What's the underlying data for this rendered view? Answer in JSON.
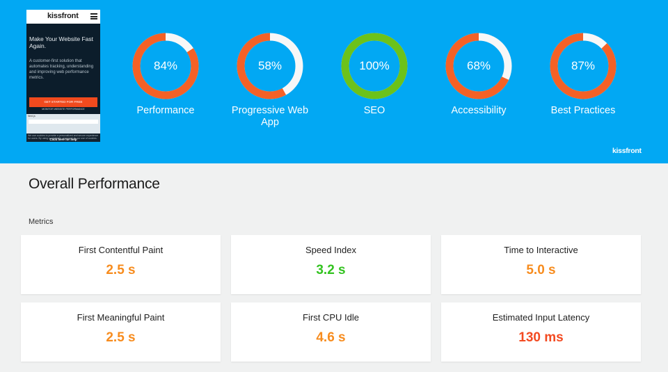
{
  "preview": {
    "logo": "kissfront",
    "menu_icon": "hamburger-icon",
    "headline": "Make Your Website Fast Again.",
    "subtext": "A customer-first solution that automates tracking, understanding and improving web performance metrics.",
    "cta": "GET STARTED FOR FREE",
    "link": "MONITOR WEBSITE PERFORMANCE",
    "bar_label": "Next.js",
    "cookie_text": "We use cookies to provide a personalized and secure experience for users. By using our website, you agree to our use of cookies.",
    "help": "Click here for help"
  },
  "colors": {
    "hero_bg": "#02a8f3",
    "orange": "#f46126",
    "green": "#6cc21a",
    "ring_light": "#f7f7f7",
    "value_orange": "#f78c1e",
    "value_green": "#33c320",
    "value_red": "#f34a21"
  },
  "gauges": [
    {
      "value": "84%",
      "score": 84,
      "label": "Performance",
      "color": "#f46126"
    },
    {
      "value": "58%",
      "score": 58,
      "label": "Progressive Web App",
      "color": "#f46126"
    },
    {
      "value": "100%",
      "score": 100,
      "label": "SEO",
      "color": "#6cc21a"
    },
    {
      "value": "68%",
      "score": 68,
      "label": "Accessibility",
      "color": "#f46126"
    },
    {
      "value": "87%",
      "score": 87,
      "label": "Best Practices",
      "color": "#f46126"
    }
  ],
  "brand": "kissfront",
  "section_title": "Overall Performance",
  "metrics_label": "Metrics",
  "metrics": [
    {
      "title": "First Contentful Paint",
      "value": "2.5 s",
      "color": "#f78c1e"
    },
    {
      "title": "Speed Index",
      "value": "3.2 s",
      "color": "#33c320"
    },
    {
      "title": "Time to Interactive",
      "value": "5.0 s",
      "color": "#f78c1e"
    },
    {
      "title": "First Meaningful Paint",
      "value": "2.5 s",
      "color": "#f78c1e"
    },
    {
      "title": "First CPU Idle",
      "value": "4.6 s",
      "color": "#f78c1e"
    },
    {
      "title": "Estimated Input Latency",
      "value": "130 ms",
      "color": "#f34a21"
    }
  ]
}
